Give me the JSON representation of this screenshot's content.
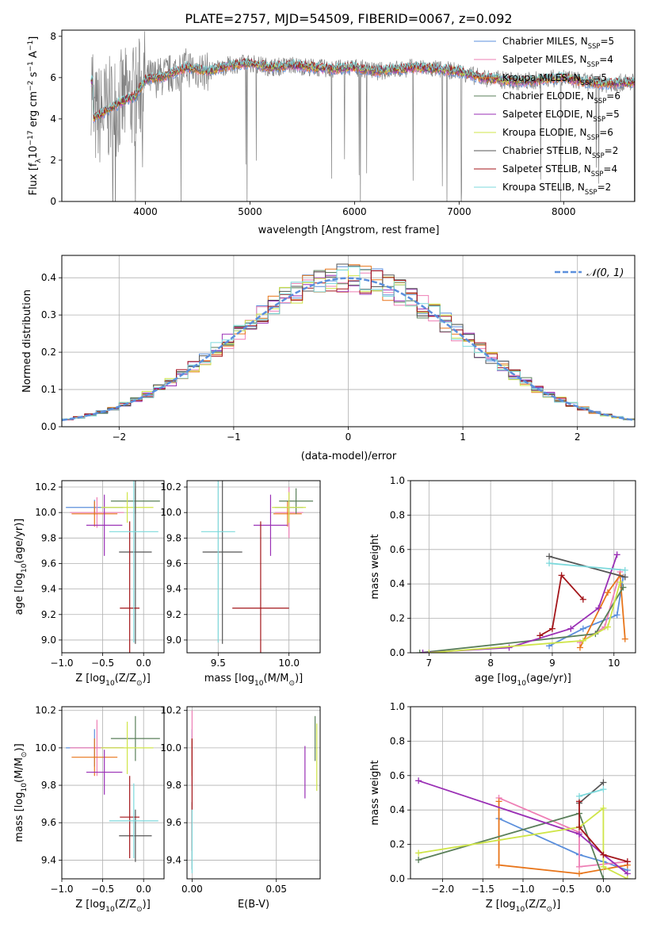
{
  "chart_data": [
    {
      "id": "spectrum",
      "type": "line",
      "title": "PLATE=2757, MJD=54509, FIBERID=0067, z=0.092",
      "xlabel": "wavelength [Angstrom, rest frame]",
      "ylabel_parts": [
        "Flux [f",
        "λ",
        "10",
        "−17",
        " erg cm",
        "−2",
        " s",
        "−1",
        " A",
        "−1",
        "]"
      ],
      "xlim": [
        3200,
        8680
      ],
      "ylim": [
        0,
        8.3
      ],
      "xticks": [
        4000,
        5000,
        6000,
        7000,
        8000
      ],
      "yticks": [
        0,
        2,
        4,
        6,
        8
      ],
      "legend": "top-right",
      "series": [
        {
          "name": "Chabrier MILES, N",
          "sub": "SSP",
          "suffix": "=5",
          "color": "#5b8fdc"
        },
        {
          "name": "Salpeter MILES, N",
          "sub": "SSP",
          "suffix": "=4",
          "color": "#ee7fb5"
        },
        {
          "name": "Kroupa MILES, N",
          "sub": "SSP",
          "suffix": "=5",
          "color": "#e8751a"
        },
        {
          "name": "Chabrier ELODIE, N",
          "sub": "SSP",
          "suffix": "=6",
          "color": "#5a7f5a"
        },
        {
          "name": "Salpeter ELODIE, N",
          "sub": "SSP",
          "suffix": "=5",
          "color": "#9a2fb5"
        },
        {
          "name": "Kroupa ELODIE, N",
          "sub": "SSP",
          "suffix": "=6",
          "color": "#cfe548"
        },
        {
          "name": "Chabrier STELIB, N",
          "sub": "SSP",
          "suffix": "=2",
          "color": "#555555"
        },
        {
          "name": "Salpeter STELIB, N",
          "sub": "SSP",
          "suffix": "=4",
          "color": "#a3151a"
        },
        {
          "name": "Kroupa STELIB, N",
          "sub": "SSP",
          "suffix": "=2",
          "color": "#7dd9dc"
        }
      ],
      "data_color": "#808080",
      "data_approx": {
        "x": [
          3500,
          3600,
          3700,
          3800,
          3900,
          4000,
          4200,
          4400,
          4600,
          4800,
          5000,
          5200,
          5400,
          5600,
          5800,
          6000,
          6200,
          6400,
          6600,
          6800,
          7000,
          7200,
          7400,
          7600,
          7800,
          8000,
          8200,
          8400,
          8680
        ],
        "y": [
          4.0,
          4.3,
          4.6,
          4.9,
          5.1,
          5.9,
          6.1,
          6.5,
          6.3,
          6.6,
          6.7,
          6.5,
          6.6,
          6.5,
          6.4,
          6.5,
          6.3,
          6.4,
          6.5,
          6.4,
          6.3,
          6.0,
          5.9,
          5.8,
          5.9,
          6.0,
          5.8,
          5.7,
          5.8
        ]
      }
    },
    {
      "id": "residuals",
      "type": "histogram",
      "xlabel": "(data-model)/error",
      "ylabel": "Normed distribution",
      "xlim": [
        -2.5,
        2.5
      ],
      "ylim": [
        0,
        0.46
      ],
      "xticks": [
        -2,
        -1,
        0,
        1,
        2
      ],
      "yticks": [
        0.0,
        0.1,
        0.2,
        0.3,
        0.4
      ],
      "legend_label": "𝒩(0, 1)",
      "legend": "top-right",
      "reference_color": "#5b8fdc"
    },
    {
      "id": "age-vs-z",
      "type": "errorbar",
      "xlabel_parts": [
        "Z [log",
        "10",
        "(Z/Z",
        "⊙",
        ")]"
      ],
      "ylabel_parts": [
        "age  [log",
        "10",
        "(age/yr)]"
      ],
      "xlim": [
        -1.0,
        0.25
      ],
      "ylim": [
        8.9,
        10.25
      ],
      "xticks": [
        -1.0,
        -0.5,
        0.0
      ],
      "yticks": [
        9.0,
        9.2,
        9.4,
        9.6,
        9.8,
        10.0,
        10.2
      ],
      "points": [
        {
          "color": "#5b8fdc",
          "x": -0.6,
          "xerr": 0.35,
          "y": 10.04,
          "yerr": 0.06
        },
        {
          "color": "#ee7fb5",
          "x": -0.57,
          "xerr": 0.33,
          "y": 10.0,
          "yerr": 0.12
        },
        {
          "color": "#e8751a",
          "x": -0.6,
          "xerr": 0.28,
          "y": 9.99,
          "yerr": 0.1
        },
        {
          "color": "#5a7f5a",
          "x": -0.1,
          "xerr": 0.3,
          "y": 10.09,
          "yerr": 0.1
        },
        {
          "color": "#9a2fb5",
          "x": -0.48,
          "xerr": 0.22,
          "y": 9.9,
          "yerr": 0.24
        },
        {
          "color": "#cfe548",
          "x": -0.2,
          "xerr": 0.32,
          "y": 10.04,
          "yerr": 0.12
        },
        {
          "color": "#555555",
          "x": -0.1,
          "xerr": 0.2,
          "y": 9.69,
          "yerr": 0.72
        },
        {
          "color": "#a3151a",
          "x": -0.17,
          "xerr": 0.12,
          "y": 9.25,
          "yerr": 0.68
        },
        {
          "color": "#7dd9dc",
          "x": -0.12,
          "xerr": 0.3,
          "y": 9.85,
          "yerr": 0.87
        }
      ]
    },
    {
      "id": "age-vs-mass",
      "type": "errorbar",
      "xlabel_parts": [
        "mass [log",
        "10",
        "(M/M",
        "⊙",
        ")]"
      ],
      "xlim": [
        9.28,
        10.22
      ],
      "ylim": [
        8.9,
        10.25
      ],
      "xticks": [
        9.5,
        10.0
      ],
      "yticks": [
        9.0,
        9.2,
        9.4,
        9.6,
        9.8,
        10.0,
        10.2
      ],
      "points": [
        {
          "color": "#5b8fdc",
          "x": 10.0,
          "xerr": 0.1,
          "y": 10.04,
          "yerr": 0.06
        },
        {
          "color": "#ee7fb5",
          "x": 10.0,
          "xerr": 0.1,
          "y": 10.0,
          "yerr": 0.2
        },
        {
          "color": "#e8751a",
          "x": 9.99,
          "xerr": 0.1,
          "y": 9.99,
          "yerr": 0.1
        },
        {
          "color": "#5a7f5a",
          "x": 10.05,
          "xerr": 0.12,
          "y": 10.09,
          "yerr": 0.1
        },
        {
          "color": "#9a2fb5",
          "x": 9.87,
          "xerr": 0.12,
          "y": 9.9,
          "yerr": 0.24
        },
        {
          "color": "#cfe548",
          "x": 10.0,
          "xerr": 0.12,
          "y": 10.04,
          "yerr": 0.12
        },
        {
          "color": "#555555",
          "x": 9.53,
          "xerr": 0.14,
          "y": 9.69,
          "yerr": 0.72
        },
        {
          "color": "#a3151a",
          "x": 9.8,
          "xerr": 0.2,
          "y": 9.25,
          "yerr": 0.68
        },
        {
          "color": "#7dd9dc",
          "x": 9.5,
          "xerr": 0.12,
          "y": 9.85,
          "yerr": 0.87
        }
      ]
    },
    {
      "id": "weight-vs-age",
      "type": "line",
      "xlabel_parts": [
        "age  [log",
        "10",
        "(age/yr)]"
      ],
      "ylabel": "mass weight",
      "xlim": [
        6.7,
        10.35
      ],
      "ylim": [
        0,
        1.0
      ],
      "xticks": [
        7,
        8,
        9,
        10
      ],
      "yticks": [
        0.0,
        0.2,
        0.4,
        0.6,
        0.8,
        1.0
      ],
      "series": [
        {
          "color": "#5b8fdc",
          "points": [
            [
              8.95,
              0.04
            ],
            [
              9.5,
              0.14
            ],
            [
              10.05,
              0.22
            ],
            [
              10.15,
              0.44
            ]
          ]
        },
        {
          "color": "#ee7fb5",
          "points": [
            [
              9.45,
              0.06
            ],
            [
              9.85,
              0.15
            ],
            [
              10.1,
              0.47
            ]
          ]
        },
        {
          "color": "#e8751a",
          "points": [
            [
              9.45,
              0.03
            ],
            [
              9.9,
              0.35
            ],
            [
              10.1,
              0.45
            ],
            [
              10.18,
              0.08
            ]
          ]
        },
        {
          "color": "#5a7f5a",
          "points": [
            [
              6.85,
              0.0
            ],
            [
              9.7,
              0.11
            ],
            [
              10.15,
              0.38
            ]
          ]
        },
        {
          "color": "#9a2fb5",
          "points": [
            [
              6.9,
              0.0
            ],
            [
              8.3,
              0.03
            ],
            [
              9.3,
              0.14
            ],
            [
              9.75,
              0.26
            ],
            [
              10.05,
              0.57
            ]
          ]
        },
        {
          "color": "#cfe548",
          "points": [
            [
              7.0,
              0.0
            ],
            [
              9.5,
              0.07
            ],
            [
              9.9,
              0.15
            ],
            [
              10.1,
              0.41
            ]
          ]
        },
        {
          "color": "#555555",
          "points": [
            [
              8.95,
              0.56
            ],
            [
              10.18,
              0.44
            ]
          ]
        },
        {
          "color": "#a3151a",
          "points": [
            [
              8.8,
              0.1
            ],
            [
              9.0,
              0.14
            ],
            [
              9.15,
              0.45
            ],
            [
              9.5,
              0.31
            ]
          ]
        },
        {
          "color": "#7dd9dc",
          "points": [
            [
              8.95,
              0.52
            ],
            [
              10.18,
              0.48
            ]
          ]
        }
      ]
    },
    {
      "id": "mass-vs-z",
      "type": "errorbar",
      "xlabel_parts": [
        "Z [log",
        "10",
        "(Z/Z",
        "⊙",
        ")]"
      ],
      "ylabel_parts": [
        "mass [log",
        "10",
        "(M/M",
        "⊙",
        ")]"
      ],
      "xlim": [
        -1.0,
        0.25
      ],
      "ylim": [
        9.3,
        10.22
      ],
      "xticks": [
        -1.0,
        -0.5,
        0.0
      ],
      "yticks": [
        9.4,
        9.6,
        9.8,
        10.0,
        10.2
      ],
      "points": [
        {
          "color": "#5b8fdc",
          "x": -0.6,
          "xerr": 0.35,
          "y": 10.0,
          "yerr": 0.1
        },
        {
          "color": "#ee7fb5",
          "x": -0.57,
          "xerr": 0.33,
          "y": 10.0,
          "yerr": 0.15
        },
        {
          "color": "#e8751a",
          "x": -0.6,
          "xerr": 0.28,
          "y": 9.95,
          "yerr": 0.1
        },
        {
          "color": "#5a7f5a",
          "x": -0.1,
          "xerr": 0.3,
          "y": 10.05,
          "yerr": 0.12
        },
        {
          "color": "#9a2fb5",
          "x": -0.48,
          "xerr": 0.22,
          "y": 9.87,
          "yerr": 0.12
        },
        {
          "color": "#cfe548",
          "x": -0.2,
          "xerr": 0.32,
          "y": 10.0,
          "yerr": 0.14
        },
        {
          "color": "#555555",
          "x": -0.1,
          "xerr": 0.2,
          "y": 9.53,
          "yerr": 0.14
        },
        {
          "color": "#a3151a",
          "x": -0.17,
          "xerr": 0.12,
          "y": 9.63,
          "yerr": 0.22
        },
        {
          "color": "#7dd9dc",
          "x": -0.12,
          "xerr": 0.3,
          "y": 9.61,
          "yerr": 0.2
        }
      ]
    },
    {
      "id": "mass-vs-ebv",
      "type": "errorbar",
      "xlabel": "E(B-V)",
      "xlim": [
        -0.003,
        0.076
      ],
      "ylim": [
        9.3,
        10.22
      ],
      "xticks": [
        0.0,
        0.05
      ],
      "xtick_labels": [
        "0.00",
        "0.05"
      ],
      "yticks": [
        9.4,
        9.6,
        9.8,
        10.0,
        10.2
      ],
      "points": [
        {
          "color": "#5b8fdc",
          "x": 0.0,
          "xerr": 0,
          "y": 10.0,
          "yerr": 0.1
        },
        {
          "color": "#ee7fb5",
          "x": 0.0,
          "xerr": 0,
          "y": 10.0,
          "yerr": 0.2
        },
        {
          "color": "#e8751a",
          "x": 0.0,
          "xerr": 0,
          "y": 9.95,
          "yerr": 0.1
        },
        {
          "color": "#5a7f5a",
          "x": 0.073,
          "xerr": 0,
          "y": 10.05,
          "yerr": 0.12
        },
        {
          "color": "#9a2fb5",
          "x": 0.067,
          "xerr": 0,
          "y": 9.87,
          "yerr": 0.14
        },
        {
          "color": "#cfe548",
          "x": 0.074,
          "xerr": 0,
          "y": 9.95,
          "yerr": 0.18
        },
        {
          "color": "#555555",
          "x": 0.0,
          "xerr": 0,
          "y": 9.53,
          "yerr": 0.18
        },
        {
          "color": "#a3151a",
          "x": 0.0,
          "xerr": 0,
          "y": 9.75,
          "yerr": 0.3
        },
        {
          "color": "#7dd9dc",
          "x": 0.0,
          "xerr": 0,
          "y": 9.5,
          "yerr": 0.17
        }
      ]
    },
    {
      "id": "weight-vs-z",
      "type": "line",
      "xlabel_parts": [
        "Z [log",
        "10",
        "(Z/Z",
        "⊙",
        ")]"
      ],
      "ylabel": "mass weight",
      "xlim": [
        -2.4,
        0.4
      ],
      "ylim": [
        0,
        1.0
      ],
      "xticks": [
        -2.0,
        -1.5,
        -1.0,
        -0.5,
        0.0
      ],
      "yticks": [
        0.0,
        0.2,
        0.4,
        0.6,
        0.8,
        1.0
      ],
      "series": [
        {
          "color": "#5b8fdc",
          "points": [
            [
              -1.3,
              0.35
            ],
            [
              -0.3,
              0.14
            ],
            [
              0.0,
              0.1
            ],
            [
              0.3,
              0.05
            ]
          ]
        },
        {
          "color": "#ee7fb5",
          "points": [
            [
              -1.3,
              0.47
            ],
            [
              -0.3,
              0.27
            ],
            [
              -0.3,
              0.07
            ],
            [
              0.3,
              0.1
            ]
          ]
        },
        {
          "color": "#e8751a",
          "points": [
            [
              -1.3,
              0.45
            ],
            [
              -1.3,
              0.08
            ],
            [
              -0.3,
              0.03
            ],
            [
              0.3,
              0.08
            ]
          ]
        },
        {
          "color": "#5a7f5a",
          "points": [
            [
              -2.3,
              0.11
            ],
            [
              -0.3,
              0.38
            ],
            [
              0.0,
              0.0
            ]
          ]
        },
        {
          "color": "#9a2fb5",
          "points": [
            [
              -2.3,
              0.57
            ],
            [
              -0.3,
              0.26
            ],
            [
              0.0,
              0.14
            ],
            [
              0.3,
              0.03
            ]
          ]
        },
        {
          "color": "#cfe548",
          "points": [
            [
              -2.3,
              0.15
            ],
            [
              -0.3,
              0.3
            ],
            [
              0.0,
              0.41
            ],
            [
              0.0,
              0.07
            ],
            [
              0.3,
              0.0
            ]
          ]
        },
        {
          "color": "#555555",
          "points": [
            [
              -0.3,
              0.44
            ],
            [
              0.0,
              0.56
            ]
          ]
        },
        {
          "color": "#a3151a",
          "points": [
            [
              -0.3,
              0.45
            ],
            [
              -0.3,
              0.3
            ],
            [
              0.0,
              0.14
            ],
            [
              0.3,
              0.1
            ]
          ]
        },
        {
          "color": "#7dd9dc",
          "points": [
            [
              -0.3,
              0.48
            ],
            [
              0.0,
              0.52
            ]
          ]
        }
      ]
    }
  ]
}
